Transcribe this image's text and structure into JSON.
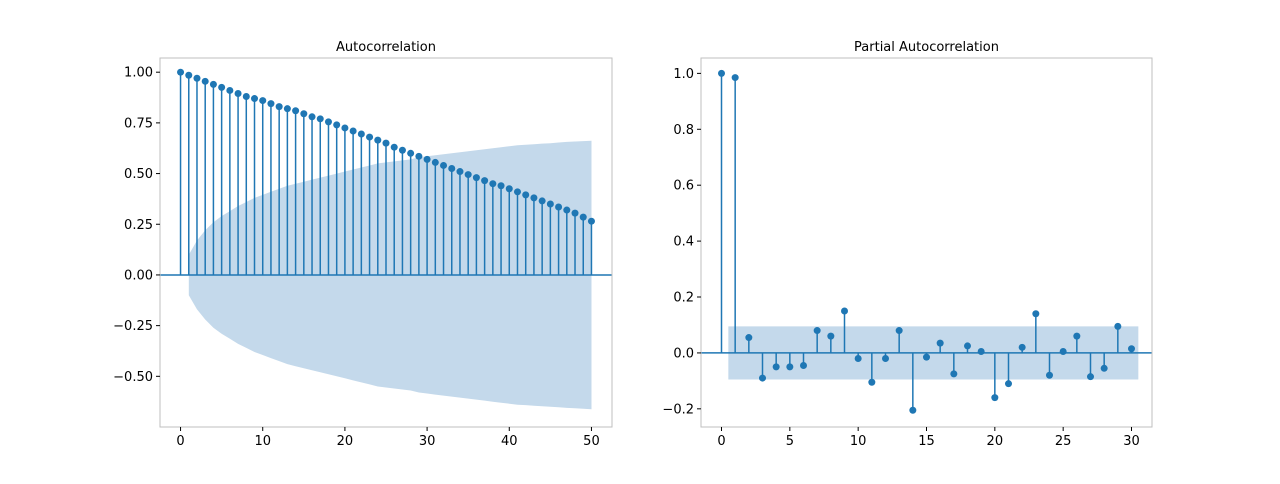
{
  "chart_data": [
    {
      "type": "stem",
      "title": "Autocorrelation",
      "xlabel": "",
      "ylabel": "",
      "xlim": [
        -2.5,
        52.5
      ],
      "ylim": [
        -0.75,
        1.07
      ],
      "xticks": [
        0,
        10,
        20,
        30,
        40,
        50
      ],
      "xtick_labels": [
        "0",
        "10",
        "20",
        "30",
        "40",
        "50"
      ],
      "yticks": [
        -0.5,
        -0.25,
        0.0,
        0.25,
        0.5,
        0.75,
        1.0
      ],
      "ytick_labels": [
        "−0.50",
        "−0.25",
        "0.00",
        "0.25",
        "0.50",
        "0.75",
        "1.00"
      ],
      "grid": false,
      "color": "#1f77b4",
      "band_color": "#c4d9eb",
      "x": [
        0,
        1,
        2,
        3,
        4,
        5,
        6,
        7,
        8,
        9,
        10,
        11,
        12,
        13,
        14,
        15,
        16,
        17,
        18,
        19,
        20,
        21,
        22,
        23,
        24,
        25,
        26,
        27,
        28,
        29,
        30,
        31,
        32,
        33,
        34,
        35,
        36,
        37,
        38,
        39,
        40,
        41,
        42,
        43,
        44,
        45,
        46,
        47,
        48,
        49,
        50
      ],
      "values": [
        1.0,
        0.985,
        0.97,
        0.955,
        0.94,
        0.925,
        0.91,
        0.895,
        0.88,
        0.87,
        0.86,
        0.845,
        0.83,
        0.82,
        0.81,
        0.795,
        0.78,
        0.77,
        0.755,
        0.74,
        0.725,
        0.71,
        0.695,
        0.68,
        0.665,
        0.65,
        0.63,
        0.615,
        0.6,
        0.585,
        0.57,
        0.555,
        0.54,
        0.525,
        0.51,
        0.495,
        0.48,
        0.465,
        0.45,
        0.44,
        0.425,
        0.41,
        0.395,
        0.38,
        0.365,
        0.35,
        0.335,
        0.32,
        0.305,
        0.285,
        0.265
      ],
      "confidence_upper": [
        null,
        0.1,
        0.17,
        0.22,
        0.26,
        0.29,
        0.315,
        0.34,
        0.36,
        0.38,
        0.395,
        0.41,
        0.425,
        0.44,
        0.45,
        0.46,
        0.47,
        0.48,
        0.49,
        0.5,
        0.51,
        0.52,
        0.53,
        0.54,
        0.55,
        0.555,
        0.56,
        0.565,
        0.57,
        0.58,
        0.585,
        0.59,
        0.595,
        0.6,
        0.605,
        0.61,
        0.615,
        0.62,
        0.625,
        0.63,
        0.635,
        0.64,
        0.642,
        0.645,
        0.648,
        0.65,
        0.653,
        0.656,
        0.658,
        0.66,
        0.662
      ]
    },
    {
      "type": "stem",
      "title": "Partial Autocorrelation",
      "xlabel": "",
      "ylabel": "",
      "xlim": [
        -1.5,
        31.5
      ],
      "ylim": [
        -0.265,
        1.055
      ],
      "xticks": [
        0,
        5,
        10,
        15,
        20,
        25,
        30
      ],
      "xtick_labels": [
        "0",
        "5",
        "10",
        "15",
        "20",
        "25",
        "30"
      ],
      "yticks": [
        -0.2,
        0.0,
        0.2,
        0.4,
        0.6,
        0.8,
        1.0
      ],
      "ytick_labels": [
        "−0.2",
        "0.0",
        "0.2",
        "0.4",
        "0.6",
        "0.8",
        "1.0"
      ],
      "grid": false,
      "color": "#1f77b4",
      "band_color": "#c4d9eb",
      "x": [
        0,
        1,
        2,
        3,
        4,
        5,
        6,
        7,
        8,
        9,
        10,
        11,
        12,
        13,
        14,
        15,
        16,
        17,
        18,
        19,
        20,
        21,
        22,
        23,
        24,
        25,
        26,
        27,
        28,
        29,
        30
      ],
      "values": [
        1.0,
        0.985,
        0.055,
        -0.09,
        -0.05,
        -0.05,
        -0.045,
        0.08,
        0.06,
        0.15,
        -0.02,
        -0.105,
        -0.02,
        0.08,
        -0.205,
        -0.015,
        0.035,
        -0.075,
        0.025,
        0.005,
        -0.16,
        -0.11,
        0.02,
        0.14,
        -0.08,
        0.005,
        0.06,
        -0.085,
        -0.055,
        0.095,
        0.015
      ],
      "confidence_band": [
        -0.095,
        0.095
      ],
      "band_x": [
        0.5,
        30.5
      ]
    }
  ]
}
